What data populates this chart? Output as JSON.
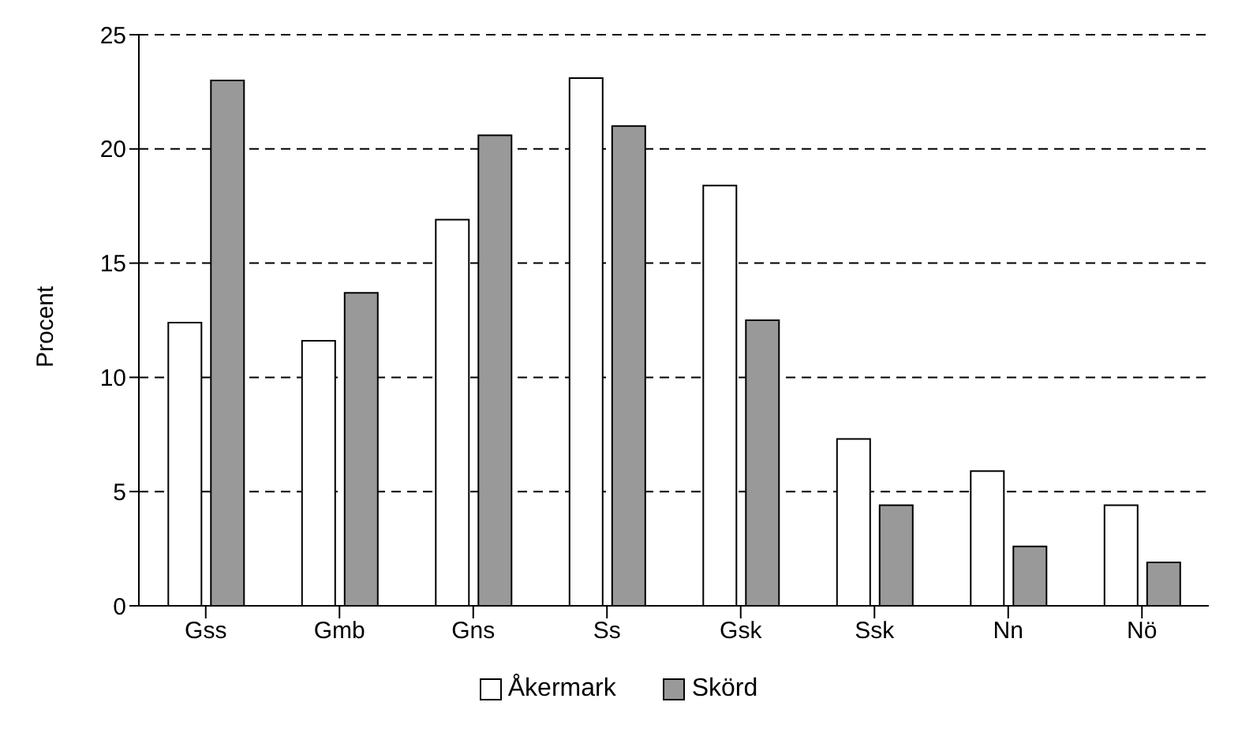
{
  "chart_data": {
    "type": "bar",
    "ylabel": "Procent",
    "categories": [
      "Gss",
      "Gmb",
      "Gns",
      "Ss",
      "Gsk",
      "Ssk",
      "Nn",
      "Nö"
    ],
    "series": [
      {
        "name": "Åkermark",
        "color": "#ffffff",
        "values": [
          12.4,
          11.6,
          16.9,
          23.1,
          18.4,
          7.3,
          5.9,
          4.4
        ]
      },
      {
        "name": "Skörd",
        "color": "#999999",
        "values": [
          23.0,
          13.7,
          20.6,
          21.0,
          12.5,
          4.4,
          2.6,
          1.9
        ]
      }
    ],
    "ylim": [
      0,
      25
    ],
    "yticks": [
      0,
      5,
      10,
      15,
      20,
      25
    ],
    "grid": "y",
    "legend": "bottom"
  }
}
